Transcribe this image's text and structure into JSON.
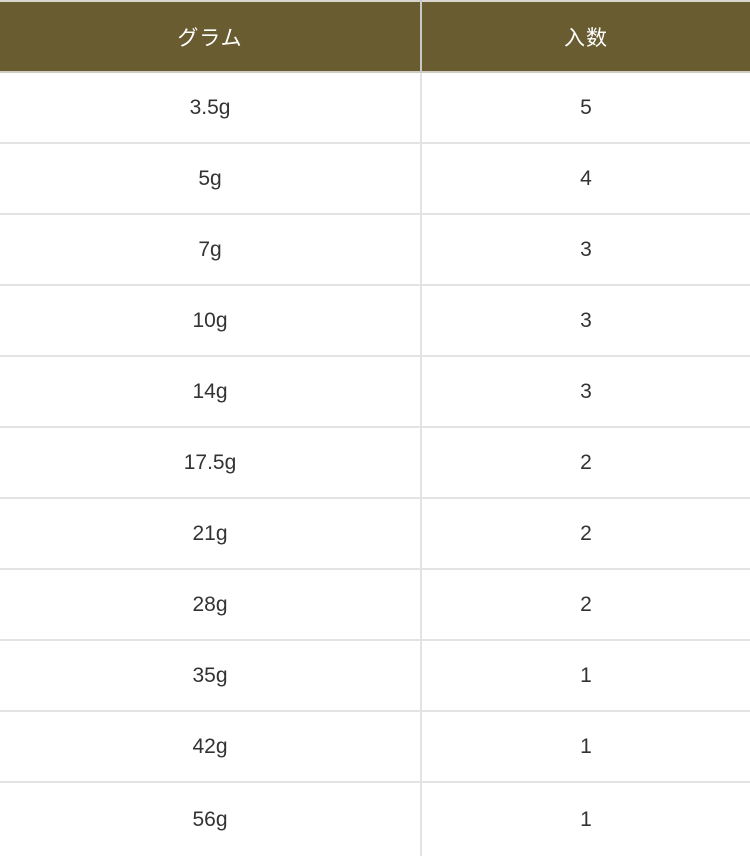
{
  "table": {
    "columns": [
      {
        "id": "gram",
        "label": "グラム"
      },
      {
        "id": "count",
        "label": "入数"
      }
    ],
    "rows": [
      {
        "gram": "3.5g",
        "count": "5"
      },
      {
        "gram": "5g",
        "count": "4"
      },
      {
        "gram": "7g",
        "count": "3"
      },
      {
        "gram": "10g",
        "count": "3"
      },
      {
        "gram": "14g",
        "count": "3"
      },
      {
        "gram": "17.5g",
        "count": "2"
      },
      {
        "gram": "21g",
        "count": "2"
      },
      {
        "gram": "28g",
        "count": "2"
      },
      {
        "gram": "35g",
        "count": "1"
      },
      {
        "gram": "42g",
        "count": "1"
      },
      {
        "gram": "56g",
        "count": "1"
      }
    ],
    "colors": {
      "header_background": "#685c30",
      "header_text": "#ffffff",
      "body_text": "#333333",
      "row_divider": "#e3e3e3",
      "header_divider": "#c8c8c8",
      "outer_top_border": "#d9d6d0"
    }
  },
  "chart_data": {
    "type": "table",
    "columns": [
      "グラム",
      "入数"
    ],
    "rows": [
      [
        "3.5g",
        5
      ],
      [
        "5g",
        4
      ],
      [
        "7g",
        3
      ],
      [
        "10g",
        3
      ],
      [
        "14g",
        3
      ],
      [
        "17.5g",
        2
      ],
      [
        "21g",
        2
      ],
      [
        "28g",
        2
      ],
      [
        "35g",
        1
      ],
      [
        "42g",
        1
      ],
      [
        "56g",
        1
      ]
    ],
    "layout": {
      "header_position": "top",
      "alignment": "center",
      "grid": "horizontal-full-width, single-vertical-divider"
    }
  }
}
